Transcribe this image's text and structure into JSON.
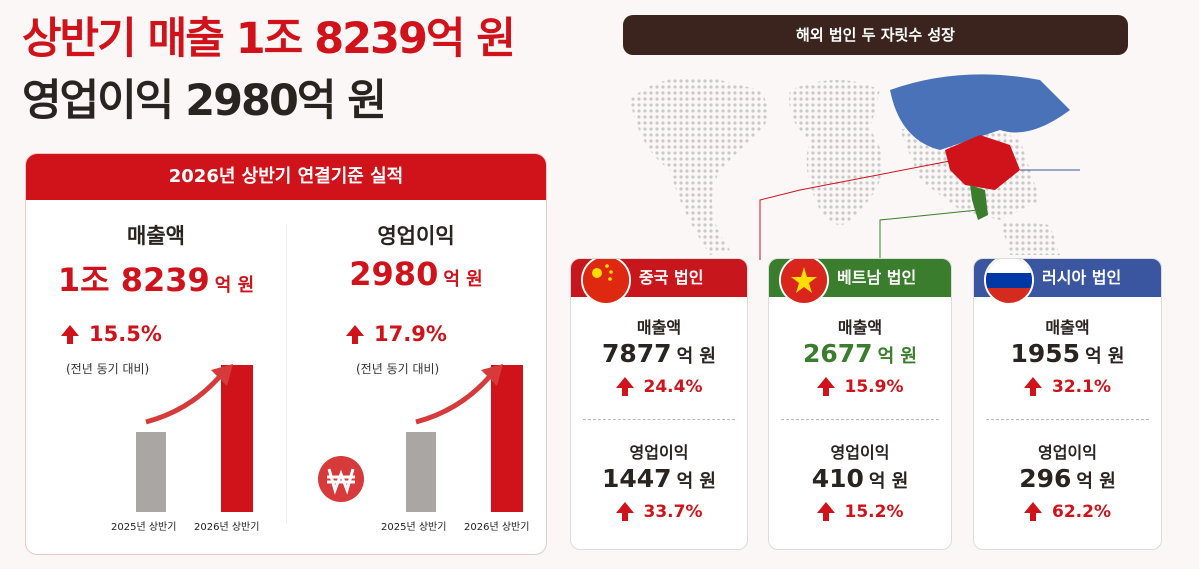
{
  "title": {
    "line1": "상반기 매출 1조 8239억 원",
    "line2": "영업이익 2980억 원"
  },
  "summary": {
    "header": "2026년 상반기 연결기준 실적",
    "items": [
      {
        "label": "매출액",
        "amount": "1조 8239",
        "unit": "억 원",
        "growth": "15.5%",
        "note": "(전년 동기 대비)",
        "bars": [
          "2025년 상반기",
          "2026년 상반기"
        ]
      },
      {
        "label": "영업이익",
        "amount": "2980",
        "unit": "억 원",
        "growth": "17.9%",
        "note": "(전년 동기 대비)",
        "bars": [
          "2025년 상반기",
          "2026년 상반기"
        ]
      }
    ]
  },
  "overseas": {
    "header": "해외 법인 두 자릿수 성장",
    "entities": [
      {
        "name": "중국 법인",
        "color": "#c8161d",
        "metrics": [
          {
            "label": "매출액",
            "amount": "7877",
            "unit": "억 원",
            "growth": "24.4%"
          },
          {
            "label": "영업이익",
            "amount": "1447",
            "unit": "억 원",
            "growth": "33.7%"
          }
        ]
      },
      {
        "name": "베트남 법인",
        "color": "#3a7d2c",
        "metrics": [
          {
            "label": "매출액",
            "amount": "2677",
            "unit": "억 원",
            "growth": "15.9%"
          },
          {
            "label": "영업이익",
            "amount": "410",
            "unit": "억 원",
            "growth": "15.2%"
          }
        ]
      },
      {
        "name": "러시아 법인",
        "color": "#3a56a0",
        "metrics": [
          {
            "label": "매출액",
            "amount": "1955",
            "unit": "억 원",
            "growth": "32.1%"
          },
          {
            "label": "영업이익",
            "amount": "296",
            "unit": "억 원",
            "growth": "62.2%"
          }
        ]
      }
    ]
  }
}
